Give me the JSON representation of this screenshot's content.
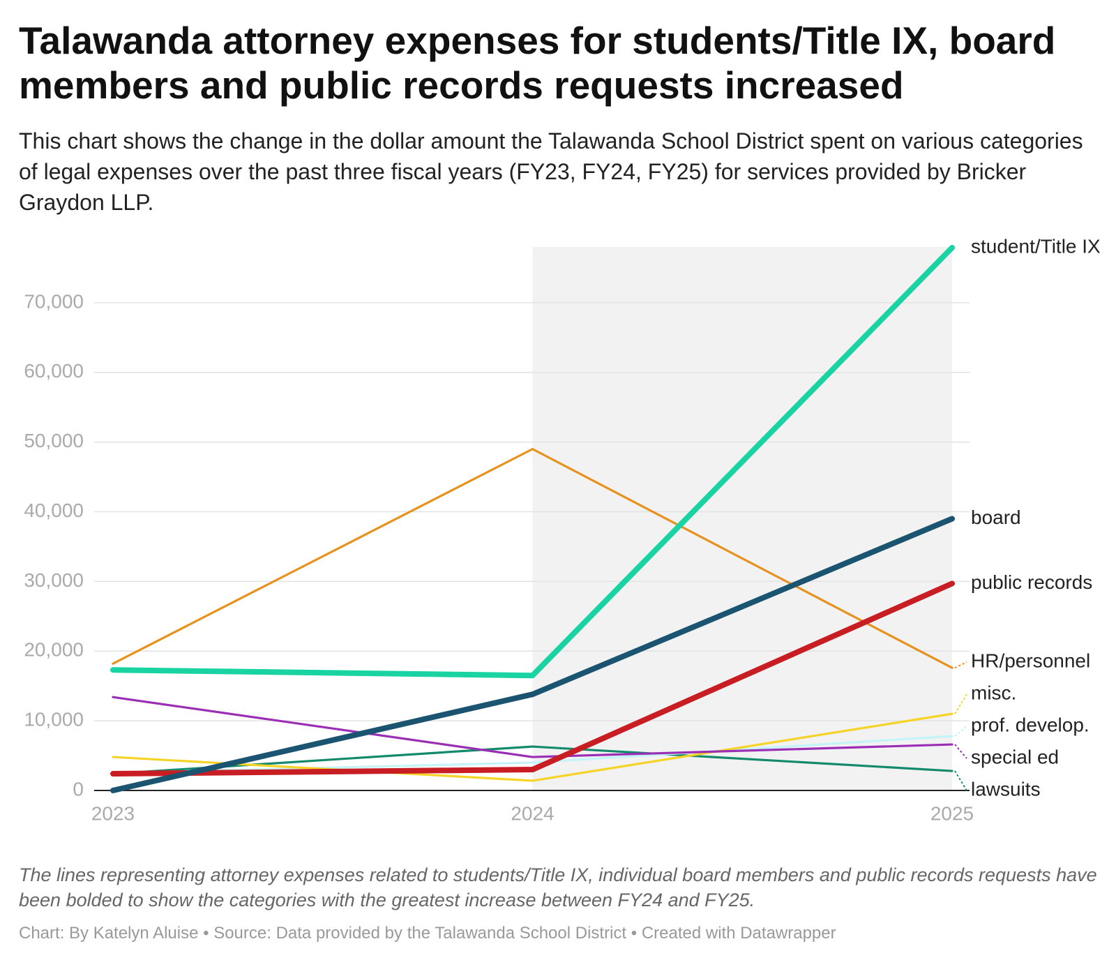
{
  "chart_data": {
    "type": "line",
    "title": "Talawanda attorney expenses for students/Title IX, board members and public records requests increased",
    "subtitle": "This chart shows the change in the dollar amount the Talawanda School District spent on various categories of legal expenses over the past three fiscal years (FY23, FY24, FY25) for services provided by Bricker Graydon LLP.",
    "note": "The lines representing attorney expenses related to students/Title IX, individual board members and public records requests have been bolded to show the categories with the greatest increase between FY24 and FY25.",
    "credit": "Chart: By Katelyn Aluise • Source: Data provided by the Talawanda School District • Created with Datawrapper",
    "x": [
      2023,
      2024,
      2025
    ],
    "xlim": [
      2023,
      2025
    ],
    "xticks": [
      2023,
      2024,
      2025
    ],
    "ylim": [
      0,
      78000
    ],
    "yticks": [
      0,
      {
        "value": 10000,
        "label": "10,000"
      },
      {
        "value": 20000,
        "label": "20,000"
      },
      {
        "value": 30000,
        "label": "30,000"
      },
      {
        "value": 40000,
        "label": "40,000"
      },
      {
        "value": 50000,
        "label": "50,000"
      },
      {
        "value": 60000,
        "label": "60,000"
      },
      {
        "value": 70000,
        "label": "70,000"
      }
    ],
    "grid": true,
    "shaded_x": [
      2024,
      2025
    ],
    "shade_color": "#f2f2f2",
    "series": [
      {
        "name": "HR/personnel",
        "color": "#e8921e",
        "values": [
          18200,
          49000,
          17600
        ]
      },
      {
        "name": "lawsuits",
        "color": "#138a6b",
        "values": [
          2400,
          6300,
          2800
        ]
      },
      {
        "name": "prof. develop.",
        "color": "#c4f4f8",
        "values": [
          2500,
          4000,
          7800
        ]
      },
      {
        "name": "misc.",
        "color": "#f5d327",
        "values": [
          4800,
          1400,
          11000
        ]
      },
      {
        "name": "special ed",
        "color": "#9a2fb5",
        "values": [
          13400,
          4800,
          6600
        ]
      },
      {
        "name": "public records",
        "color": "#c91d24",
        "values": [
          2400,
          3000,
          29700
        ],
        "emphasis": true
      },
      {
        "name": "board",
        "color": "#1a5470",
        "values": [
          0,
          13800,
          39000
        ],
        "emphasis": true
      },
      {
        "name": "student/Title IX",
        "color": "#19d3a2",
        "values": [
          17300,
          16500,
          77900
        ],
        "emphasis": true
      }
    ]
  }
}
